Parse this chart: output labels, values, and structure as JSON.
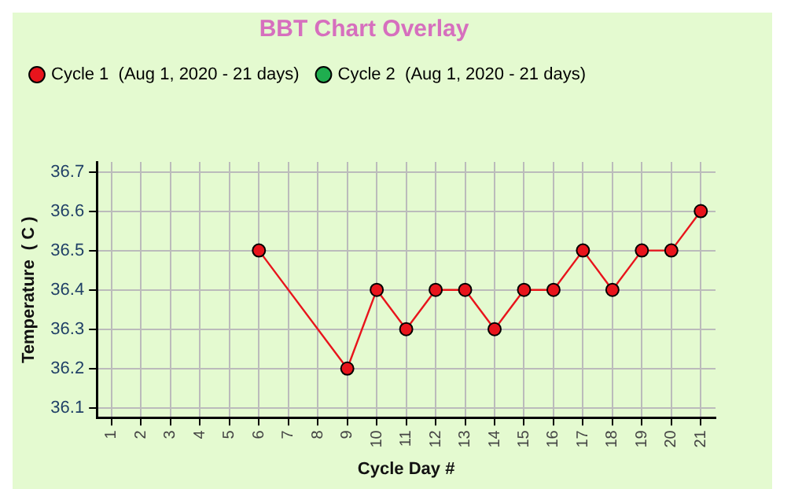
{
  "chart_data": {
    "type": "line",
    "title": "BBT Chart Overlay",
    "xlabel": "Cycle Day #",
    "ylabel": "Temperature  ( C )",
    "categories": [
      "1",
      "2",
      "3",
      "4",
      "5",
      "6",
      "7",
      "8",
      "9",
      "10",
      "11",
      "12",
      "13",
      "14",
      "15",
      "16",
      "17",
      "18",
      "19",
      "20",
      "21"
    ],
    "series": [
      {
        "name": "Cycle 1  (Aug 1, 2020 - 21 days)",
        "color": "#e8141c",
        "values": [
          null,
          null,
          null,
          null,
          null,
          36.5,
          null,
          null,
          36.2,
          36.4,
          36.3,
          36.4,
          36.4,
          36.3,
          36.4,
          36.4,
          36.5,
          36.4,
          36.5,
          36.5,
          36.6
        ]
      },
      {
        "name": "Cycle 2  (Aug 1, 2020 - 21 days)",
        "color": "#1fae4f",
        "values": [
          null,
          null,
          null,
          null,
          null,
          null,
          null,
          null,
          null,
          null,
          null,
          null,
          null,
          null,
          null,
          null,
          null,
          null,
          null,
          null,
          null
        ]
      }
    ],
    "ylim": [
      36.075,
      36.725
    ],
    "yticks": [
      36.1,
      36.2,
      36.3,
      36.4,
      36.5,
      36.6,
      36.7
    ],
    "grid": true,
    "legend": "top",
    "marker": "circle",
    "line_style": "solid"
  }
}
